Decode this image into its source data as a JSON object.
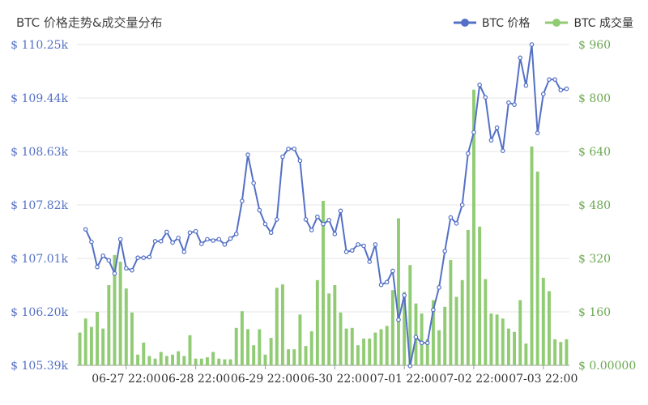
{
  "chart_data": {
    "type": "bar+line",
    "title": "BTC 价格走势&成交量分布",
    "legend_position": "top-right",
    "grid": true,
    "colors": {
      "price": "#5470c6",
      "volume": "#91cc75",
      "left_axis_text": "#5470c6",
      "right_axis_text": "#6aa84f",
      "grid": "#e6e6e6",
      "axis": "#999999",
      "title": "#444444"
    },
    "x_ticks": [
      "06-27 22:00",
      "06-28 22:00",
      "06-29 22:00",
      "06-30 22:00",
      "07-01 22:00",
      "07-02 22:00",
      "07-03 22:00"
    ],
    "x_tick_indices": [
      7,
      19,
      31,
      43,
      55,
      67,
      79
    ],
    "y_left": {
      "ticks": [
        "$ 105.39k",
        "$ 106.20k",
        "$ 107.01k",
        "$ 107.82k",
        "$ 108.63k",
        "$ 109.44k",
        "$ 110.25k"
      ],
      "range": [
        105.39,
        110.25
      ],
      "unit": "k USD"
    },
    "y_right": {
      "ticks": [
        "$ 0.00000",
        "$ 160",
        "$ 320",
        "$ 480",
        "$ 640",
        "$ 800",
        "$ 960"
      ],
      "range": [
        0,
        960
      ]
    },
    "series": [
      {
        "name": "BTC 价格",
        "type": "line",
        "values": [
          107.45,
          107.26,
          106.88,
          107.05,
          106.98,
          106.78,
          107.3,
          106.86,
          106.83,
          107.02,
          107.02,
          107.03,
          107.27,
          107.27,
          107.41,
          107.25,
          107.32,
          107.11,
          107.4,
          107.42,
          107.23,
          107.3,
          107.28,
          107.3,
          107.22,
          107.31,
          107.38,
          107.88,
          108.58,
          108.15,
          107.74,
          107.53,
          107.4,
          107.6,
          108.55,
          108.67,
          108.67,
          108.49,
          107.6,
          107.44,
          107.64,
          107.53,
          107.59,
          107.38,
          107.73,
          107.11,
          107.13,
          107.22,
          107.2,
          106.96,
          107.22,
          106.61,
          106.65,
          106.82,
          106.08,
          106.45,
          105.38,
          105.82,
          105.73,
          105.73,
          106.23,
          106.57,
          107.12,
          107.63,
          107.54,
          107.82,
          108.6,
          108.92,
          109.64,
          109.45,
          108.8,
          108.99,
          108.64,
          109.37,
          109.34,
          110.05,
          109.63,
          110.25,
          108.91,
          109.5,
          109.72,
          109.72,
          109.56,
          109.58
        ],
        "x_start_index": 0
      },
      {
        "name": "BTC 成交量",
        "type": "bar",
        "values": [
          98,
          140,
          115,
          160,
          110,
          240,
          330,
          310,
          230,
          158,
          32,
          68,
          28,
          20,
          40,
          28,
          32,
          42,
          28,
          90,
          20,
          20,
          24,
          40,
          20,
          18,
          18,
          112,
          162,
          108,
          60,
          108,
          32,
          82,
          232,
          242,
          48,
          48,
          152,
          58,
          102,
          255,
          492,
          215,
          240,
          158,
          110,
          112,
          60,
          80,
          80,
          98,
          108,
          118,
          225,
          440,
          220,
          300,
          185,
          155,
          78,
          195,
          105,
          175,
          315,
          205,
          255,
          405,
          825,
          415,
          258,
          155,
          152,
          140,
          110,
          100,
          195,
          65,
          655,
          580,
          262,
          222,
          78,
          70,
          78
        ],
        "x_start_index": -1
      }
    ]
  }
}
